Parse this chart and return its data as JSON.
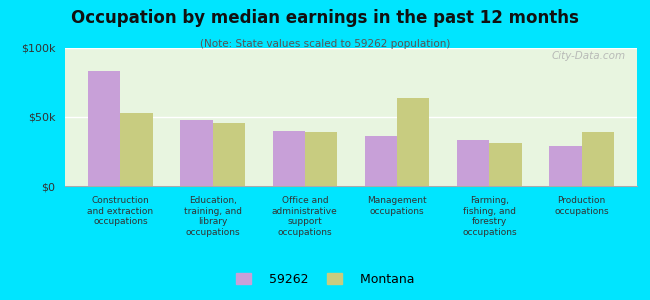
{
  "title": "Occupation by median earnings in the past 12 months",
  "subtitle": "(Note: State values scaled to 59262 population)",
  "categories": [
    "Construction\nand extraction\noccupations",
    "Education,\ntraining, and\nlibrary\noccupations",
    "Office and\nadministrative\nsupport\noccupations",
    "Management\noccupations",
    "Farming,\nfishing, and\nforestry\noccupations",
    "Production\noccupations"
  ],
  "values_59262": [
    83000,
    48000,
    40000,
    36000,
    33000,
    29000
  ],
  "values_montana": [
    53000,
    46000,
    39000,
    64000,
    31000,
    39000
  ],
  "color_59262": "#c8a0d8",
  "color_montana": "#c8cc80",
  "background_plot": "#e8f5e0",
  "background_fig": "#00e5ff",
  "ylim": [
    0,
    100000
  ],
  "ytick_labels": [
    "$0",
    "$50k",
    "$100k"
  ],
  "legend_label_1": "59262",
  "legend_label_2": "Montana",
  "watermark": "City-Data.com"
}
